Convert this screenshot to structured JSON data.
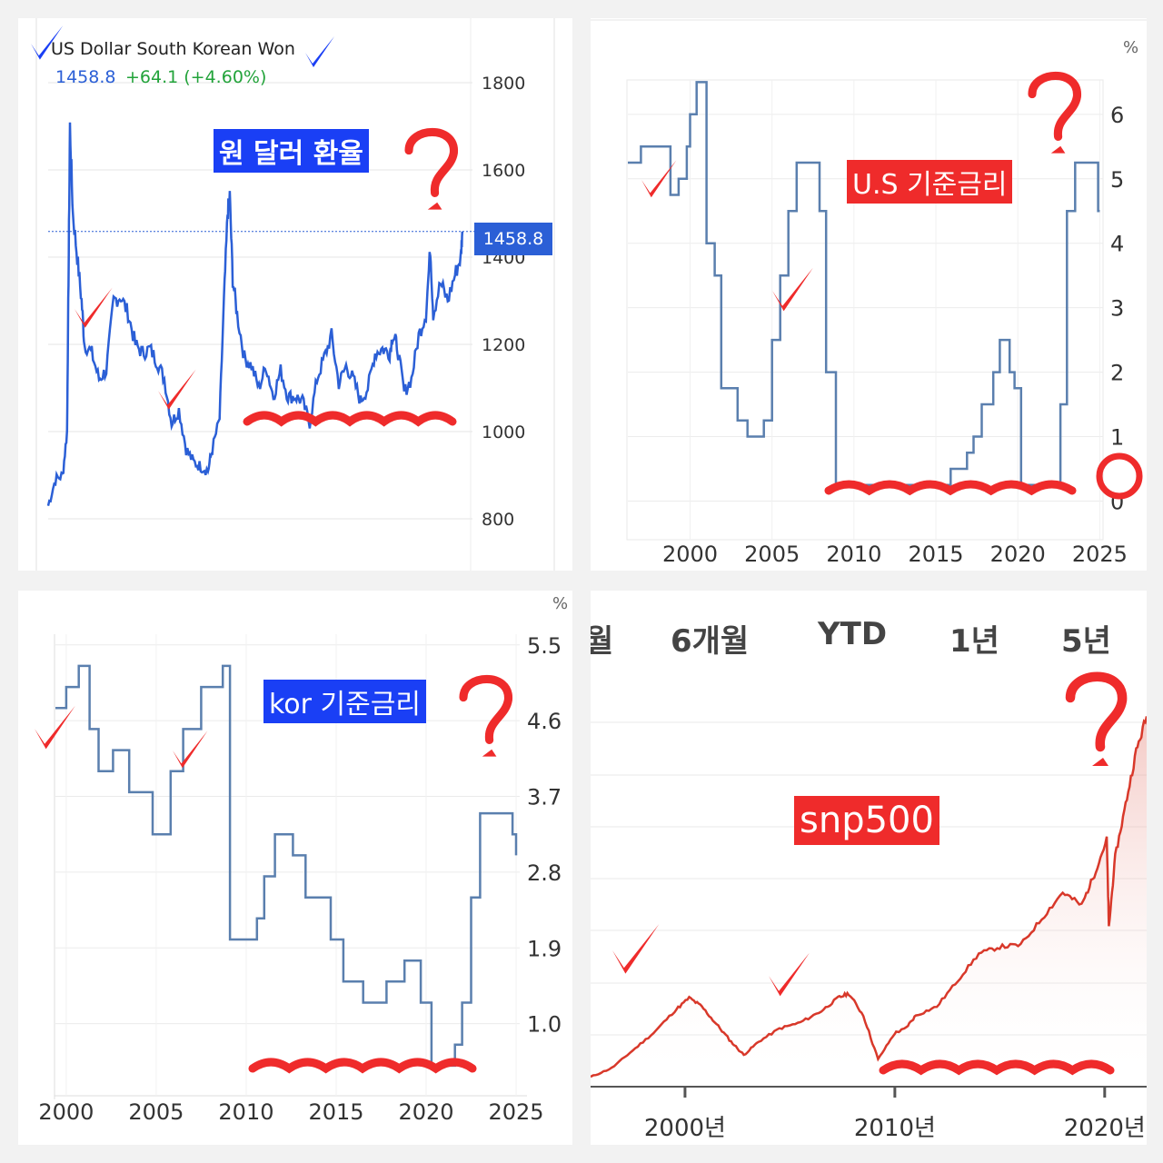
{
  "colors": {
    "line_blue": "#2b5fd6",
    "step_blue": "#5a7fae",
    "snp_red": "#d8382a",
    "annot_red": "#ef2b2b",
    "label_blue": "#1a3ff5",
    "change_green": "#22a33a"
  },
  "annotations": {
    "won_label": "원 달러 환율",
    "us_rate_label": "U.S 기준금리",
    "kor_rate_label": "kor 기준금리",
    "snp_label": "snp500",
    "marks": [
      "red-checkmark",
      "red-question-mark",
      "red-wavy-underline",
      "blue-checkmark",
      "red-circle"
    ]
  },
  "chart_data": [
    {
      "type": "line",
      "title": "US Dollar South Korean Won",
      "current_value": "1458.8",
      "change": "+64.1 (+4.60%)",
      "price_tag": "1458.8",
      "yticks": [
        "1800",
        "1600",
        "1400",
        "1200",
        "1000",
        "800"
      ],
      "ylim": [
        700,
        1850
      ],
      "xlim": [
        1996.5,
        2025.2
      ],
      "series": [
        {
          "x": [
            1996.5,
            1997.0,
            1997.5,
            1997.8,
            1997.9,
            1998.0,
            1998.2,
            1998.5,
            1998.8,
            1999.0,
            1999.5,
            2000.0,
            2000.5,
            2001.0,
            2001.5,
            2002.0,
            2002.5,
            2003.0,
            2003.5,
            2004.0,
            2004.5,
            2005.0,
            2005.5,
            2006.0,
            2006.5,
            2007.0,
            2007.5,
            2007.8,
            2008.3,
            2008.6,
            2008.85,
            2009.0,
            2009.2,
            2009.5,
            2010.0,
            2010.5,
            2011.0,
            2011.5,
            2012.0,
            2012.5,
            2013.0,
            2013.5,
            2014.0,
            2014.5,
            2015.0,
            2015.5,
            2016.0,
            2016.5,
            2017.0,
            2017.5,
            2018.0,
            2018.5,
            2019.0,
            2019.5,
            2020.0,
            2020.2,
            2020.5,
            2021.0,
            2021.5,
            2022.0,
            2022.5,
            2022.8,
            2023.0,
            2023.5,
            2024.0,
            2024.5,
            2024.9,
            2025.0
          ],
          "values": [
            830,
            890,
            900,
            1000,
            1350,
            1700,
            1500,
            1400,
            1300,
            1200,
            1180,
            1120,
            1140,
            1300,
            1310,
            1270,
            1200,
            1180,
            1190,
            1160,
            1120,
            1020,
            1050,
            960,
            930,
            920,
            910,
            960,
            1030,
            1300,
            1500,
            1540,
            1350,
            1270,
            1170,
            1150,
            1100,
            1150,
            1080,
            1140,
            1080,
            1080,
            1070,
            1020,
            1120,
            1170,
            1220,
            1110,
            1150,
            1120,
            1070,
            1100,
            1180,
            1190,
            1180,
            1220,
            1200,
            1090,
            1120,
            1220,
            1270,
            1420,
            1270,
            1340,
            1300,
            1360,
            1400,
            1458.8
          ]
        }
      ]
    },
    {
      "type": "line",
      "series_label": "U.S 기준금리",
      "unit": "%",
      "xticks": [
        "2000",
        "2005",
        "2010",
        "2015",
        "2020",
        "2025"
      ],
      "yticks": [
        "6",
        "5",
        "4",
        "3",
        "2",
        "1",
        "0"
      ],
      "ylim": [
        -0.6,
        6.9
      ],
      "xlim": [
        1996.2,
        2025.2
      ],
      "series": [
        {
          "x": [
            1996.2,
            1997.0,
            1998.8,
            1999.3,
            1999.8,
            2000.0,
            2000.4,
            2001.0,
            2001.5,
            2001.9,
            2002.9,
            2003.5,
            2004.5,
            2005.0,
            2005.5,
            2006.0,
            2006.5,
            2007.6,
            2007.9,
            2008.3,
            2008.9,
            2012.0,
            2015.9,
            2016.9,
            2017.3,
            2017.8,
            2018.5,
            2018.9,
            2019.5,
            2019.8,
            2020.2,
            2022.2,
            2022.6,
            2023.0,
            2023.5,
            2024.7,
            2024.9,
            2025.0
          ],
          "values": [
            5.25,
            5.5,
            4.75,
            5.0,
            5.5,
            6.0,
            6.5,
            4.0,
            3.5,
            1.75,
            1.25,
            1.0,
            1.25,
            2.5,
            3.5,
            4.5,
            5.25,
            5.25,
            4.5,
            2.0,
            0.25,
            0.25,
            0.5,
            0.75,
            1.0,
            1.5,
            2.0,
            2.5,
            2.0,
            1.75,
            0.25,
            0.25,
            1.5,
            4.5,
            5.25,
            5.25,
            4.5,
            4.5
          ]
        }
      ]
    },
    {
      "type": "line",
      "series_label": "kor 기준금리",
      "unit": "%",
      "xticks": [
        "2000",
        "2005",
        "2010",
        "2015",
        "2020",
        "2025"
      ],
      "yticks": [
        "5.5",
        "4.6",
        "3.7",
        "2.8",
        "1.9",
        "1.0"
      ],
      "ylim": [
        0.1,
        5.8
      ],
      "xlim": [
        1999.4,
        2025.2
      ],
      "series": [
        {
          "x": [
            1999.4,
            2000.0,
            2000.7,
            2001.3,
            2001.8,
            2002.6,
            2003.5,
            2004.8,
            2005.8,
            2006.5,
            2007.5,
            2008.7,
            2009.1,
            2010.6,
            2011.0,
            2011.6,
            2012.6,
            2013.3,
            2014.7,
            2015.4,
            2016.5,
            2017.8,
            2018.8,
            2019.7,
            2020.3,
            2021.6,
            2022.0,
            2022.5,
            2023.0,
            2024.8,
            2025.0
          ],
          "values": [
            4.75,
            5.0,
            5.25,
            4.5,
            4.0,
            4.25,
            3.75,
            3.25,
            4.0,
            4.5,
            5.0,
            5.25,
            2.0,
            2.25,
            2.75,
            3.25,
            3.0,
            2.5,
            2.0,
            1.5,
            1.25,
            1.5,
            1.75,
            1.25,
            0.5,
            0.75,
            1.25,
            2.5,
            3.5,
            3.25,
            3.0
          ]
        }
      ]
    },
    {
      "type": "area",
      "series_label": "snp500",
      "range_tabs": [
        "월",
        "6개월",
        "YTD",
        "1년",
        "5년"
      ],
      "xticks": [
        "2000년",
        "2010년",
        "2020년"
      ],
      "xlim": [
        1995.5,
        2022.0
      ],
      "ylim": [
        500,
        5200
      ],
      "series": [
        {
          "x": [
            1995.5,
            1996.5,
            1997.5,
            1998.5,
            1999.5,
            2000.2,
            2000.8,
            2001.5,
            2002.2,
            2002.8,
            2003.5,
            2004.5,
            2005.5,
            2006.5,
            2007.3,
            2007.8,
            2008.5,
            2009.2,
            2010.0,
            2010.5,
            2011.0,
            2012.0,
            2013.0,
            2014.0,
            2015.0,
            2016.0,
            2017.0,
            2018.0,
            2018.9,
            2019.5,
            2020.1,
            2020.2,
            2020.5,
            2021.0,
            2021.5,
            2022.0
          ],
          "values": [
            600,
            700,
            900,
            1100,
            1350,
            1500,
            1400,
            1200,
            1000,
            850,
            1000,
            1150,
            1220,
            1350,
            1500,
            1550,
            1300,
            800,
            1100,
            1150,
            1300,
            1400,
            1700,
            2000,
            2080,
            2100,
            2400,
            2700,
            2550,
            2900,
            3300,
            2300,
            3100,
            3700,
            4300,
            4700
          ]
        }
      ]
    }
  ]
}
